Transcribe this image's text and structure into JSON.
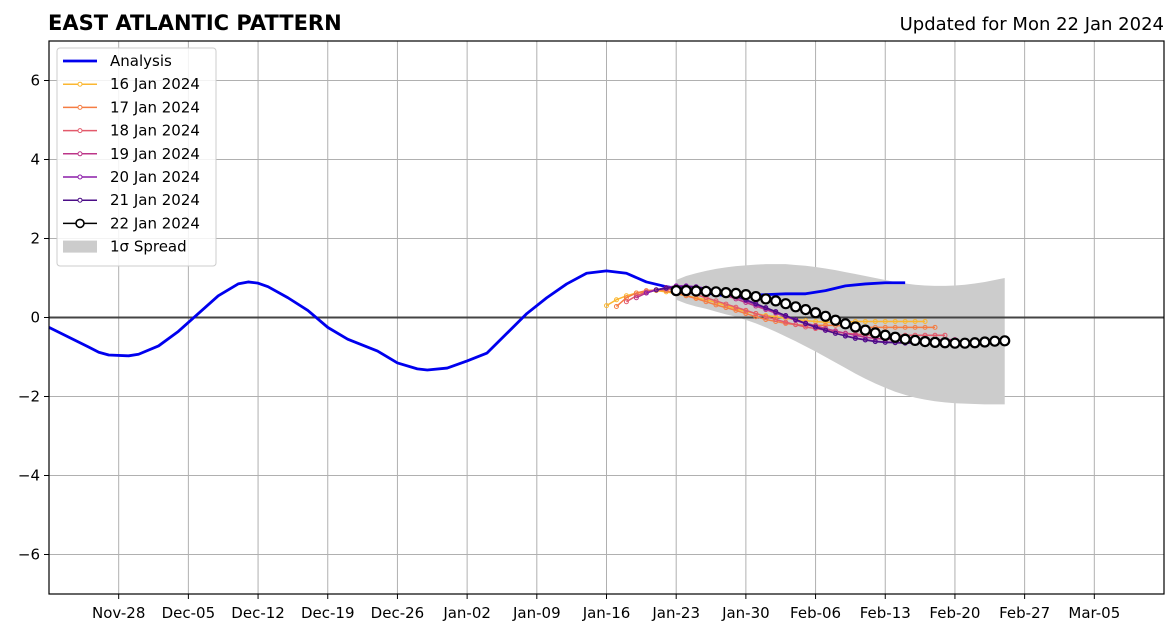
{
  "chart_data": {
    "type": "line",
    "title": "EAST ATLANTIC PATTERN",
    "subtitle": "Updated for Mon 22 Jan 2024",
    "xlabel": "",
    "ylabel": "",
    "xlim": [
      "2023-11-21",
      "2024-03-12"
    ],
    "ylim": [
      -7,
      7
    ],
    "grid": true,
    "legend_position": "top-left",
    "x_tick_labels": [
      "Nov-28",
      "Dec-05",
      "Dec-12",
      "Dec-19",
      "Dec-26",
      "Jan-02",
      "Jan-09",
      "Jan-16",
      "Jan-23",
      "Jan-30",
      "Feb-06",
      "Feb-13",
      "Feb-20",
      "Feb-27",
      "Mar-05"
    ],
    "x_tick_dates": [
      "2023-11-28",
      "2023-12-05",
      "2023-12-12",
      "2023-12-19",
      "2023-12-26",
      "2024-01-02",
      "2024-01-09",
      "2024-01-16",
      "2024-01-23",
      "2024-01-30",
      "2024-02-06",
      "2024-02-13",
      "2024-02-20",
      "2024-02-27",
      "2024-03-05"
    ],
    "y_ticks": [
      -6,
      -4,
      -2,
      0,
      2,
      4,
      6
    ],
    "y_tick_labels": [
      "−6",
      "−4",
      "−2",
      "0",
      "2",
      "4",
      "6"
    ],
    "analysis": {
      "name": "Analysis",
      "color": "#0000ee",
      "points": [
        [
          "2023-11-21",
          -0.25
        ],
        [
          "2023-11-23",
          -0.5
        ],
        [
          "2023-11-25",
          -0.75
        ],
        [
          "2023-11-26",
          -0.88
        ],
        [
          "2023-11-27",
          -0.95
        ],
        [
          "2023-11-29",
          -0.97
        ],
        [
          "2023-11-30",
          -0.93
        ],
        [
          "2023-12-02",
          -0.72
        ],
        [
          "2023-12-04",
          -0.35
        ],
        [
          "2023-12-06",
          0.1
        ],
        [
          "2023-12-08",
          0.55
        ],
        [
          "2023-12-10",
          0.85
        ],
        [
          "2023-12-11",
          0.9
        ],
        [
          "2023-12-12",
          0.87
        ],
        [
          "2023-12-13",
          0.78
        ],
        [
          "2023-12-15",
          0.5
        ],
        [
          "2023-12-17",
          0.18
        ],
        [
          "2023-12-19",
          -0.25
        ],
        [
          "2023-12-21",
          -0.55
        ],
        [
          "2023-12-24",
          -0.85
        ],
        [
          "2023-12-26",
          -1.15
        ],
        [
          "2023-12-28",
          -1.3
        ],
        [
          "2023-12-29",
          -1.33
        ],
        [
          "2023-12-31",
          -1.28
        ],
        [
          "2024-01-02",
          -1.1
        ],
        [
          "2024-01-04",
          -0.9
        ],
        [
          "2024-01-06",
          -0.4
        ],
        [
          "2024-01-08",
          0.1
        ],
        [
          "2024-01-10",
          0.5
        ],
        [
          "2024-01-12",
          0.85
        ],
        [
          "2024-01-14",
          1.12
        ],
        [
          "2024-01-16",
          1.18
        ],
        [
          "2024-01-18",
          1.12
        ],
        [
          "2024-01-20",
          0.9
        ],
        [
          "2024-01-22",
          0.78
        ],
        [
          "2024-01-24",
          0.7
        ],
        [
          "2024-01-26",
          0.62
        ],
        [
          "2024-01-28",
          0.55
        ],
        [
          "2024-01-30",
          0.55
        ],
        [
          "2024-02-01",
          0.58
        ],
        [
          "2024-02-03",
          0.6
        ],
        [
          "2024-02-05",
          0.6
        ],
        [
          "2024-02-07",
          0.68
        ],
        [
          "2024-02-09",
          0.8
        ],
        [
          "2024-02-11",
          0.85
        ],
        [
          "2024-02-13",
          0.88
        ],
        [
          "2024-02-15",
          0.88
        ]
      ]
    },
    "forecasts": [
      {
        "name": "16 Jan 2024",
        "color": "#fbb731",
        "start": "2024-01-16",
        "values": [
          0.3,
          0.45,
          0.55,
          0.62,
          0.65,
          0.68,
          0.65,
          0.6,
          0.55,
          0.5,
          0.45,
          0.38,
          0.3,
          0.22,
          0.15,
          0.1,
          0.05,
          0.02,
          -0.02,
          -0.05,
          -0.08,
          -0.1,
          -0.12,
          -0.12,
          -0.12,
          -0.1,
          -0.1,
          -0.1,
          -0.1,
          -0.1,
          -0.1,
          -0.1,
          -0.1
        ]
      },
      {
        "name": "17 Jan 2024",
        "color": "#f57d43",
        "start": "2024-01-17",
        "values": [
          0.28,
          0.5,
          0.62,
          0.68,
          0.7,
          0.68,
          0.62,
          0.55,
          0.48,
          0.4,
          0.32,
          0.25,
          0.18,
          0.1,
          0.02,
          -0.05,
          -0.1,
          -0.15,
          -0.18,
          -0.2,
          -0.2,
          -0.2,
          -0.2,
          -0.22,
          -0.25,
          -0.25,
          -0.25,
          -0.25,
          -0.25,
          -0.25,
          -0.25,
          -0.25,
          -0.25
        ]
      },
      {
        "name": "18 Jan 2024",
        "color": "#e35a6b",
        "start": "2024-01-18",
        "values": [
          0.4,
          0.55,
          0.65,
          0.7,
          0.72,
          0.7,
          0.65,
          0.58,
          0.5,
          0.42,
          0.34,
          0.26,
          0.18,
          0.1,
          0.02,
          -0.05,
          -0.12,
          -0.18,
          -0.24,
          -0.28,
          -0.32,
          -0.36,
          -0.4,
          -0.42,
          -0.44,
          -0.45,
          -0.45,
          -0.45,
          -0.45,
          -0.45,
          -0.45,
          -0.45,
          -0.45
        ]
      },
      {
        "name": "19 Jan 2024",
        "color": "#bc3688",
        "start": "2024-01-19",
        "values": [
          0.5,
          0.62,
          0.7,
          0.75,
          0.78,
          0.78,
          0.75,
          0.7,
          0.64,
          0.56,
          0.47,
          0.38,
          0.29,
          0.2,
          0.11,
          0.02,
          -0.06,
          -0.14,
          -0.21,
          -0.28,
          -0.34,
          -0.4,
          -0.45,
          -0.5,
          -0.53,
          -0.55,
          -0.56,
          -0.56,
          -0.56,
          -0.56,
          -0.56,
          -0.56,
          -0.56
        ]
      },
      {
        "name": "20 Jan 2024",
        "color": "#8b1da9",
        "start": "2024-01-20",
        "values": [
          0.62,
          0.7,
          0.76,
          0.8,
          0.8,
          0.78,
          0.74,
          0.68,
          0.6,
          0.52,
          0.43,
          0.33,
          0.23,
          0.13,
          0.03,
          -0.07,
          -0.16,
          -0.25,
          -0.33,
          -0.4,
          -0.46,
          -0.52,
          -0.56,
          -0.6,
          -0.62,
          -0.63,
          -0.64,
          -0.64,
          -0.64,
          -0.64,
          -0.64,
          -0.64,
          -0.64
        ]
      },
      {
        "name": "21 Jan 2024",
        "color": "#4b0d87",
        "start": "2024-01-21",
        "values": [
          0.7,
          0.74,
          0.77,
          0.78,
          0.77,
          0.74,
          0.69,
          0.62,
          0.54,
          0.45,
          0.35,
          0.25,
          0.15,
          0.05,
          -0.05,
          -0.15,
          -0.24,
          -0.32,
          -0.4,
          -0.47,
          -0.53,
          -0.57,
          -0.61,
          -0.63,
          -0.64,
          -0.65,
          -0.65,
          -0.65,
          -0.65,
          -0.65,
          -0.65,
          -0.65,
          -0.65
        ]
      }
    ],
    "current_forecast": {
      "name": "22 Jan 2024",
      "color": "#000000",
      "start": "2024-01-23",
      "values": [
        0.68,
        0.68,
        0.67,
        0.66,
        0.65,
        0.63,
        0.61,
        0.58,
        0.53,
        0.47,
        0.42,
        0.35,
        0.27,
        0.2,
        0.12,
        0.03,
        -0.07,
        -0.16,
        -0.24,
        -0.32,
        -0.39,
        -0.45,
        -0.5,
        -0.55,
        -0.58,
        -0.61,
        -0.63,
        -0.64,
        -0.65,
        -0.65,
        -0.64,
        -0.62,
        -0.6,
        -0.59
      ]
    },
    "spread": {
      "name": "1σ Spread",
      "color": "#cccccc",
      "start": "2024-01-23",
      "upper": [
        0.95,
        1.05,
        1.12,
        1.18,
        1.23,
        1.27,
        1.3,
        1.32,
        1.34,
        1.35,
        1.35,
        1.35,
        1.33,
        1.31,
        1.28,
        1.24,
        1.2,
        1.15,
        1.1,
        1.05,
        1.0,
        0.95,
        0.9,
        0.86,
        0.83,
        0.81,
        0.8,
        0.8,
        0.81,
        0.83,
        0.86,
        0.9,
        0.95,
        1.0
      ],
      "lower": [
        0.45,
        0.35,
        0.28,
        0.22,
        0.15,
        0.08,
        0.02,
        -0.06,
        -0.15,
        -0.25,
        -0.36,
        -0.48,
        -0.6,
        -0.73,
        -0.86,
        -1.0,
        -1.14,
        -1.28,
        -1.42,
        -1.55,
        -1.67,
        -1.78,
        -1.88,
        -1.96,
        -2.03,
        -2.08,
        -2.12,
        -2.15,
        -2.17,
        -2.18,
        -2.19,
        -2.2,
        -2.2,
        -2.2
      ]
    }
  }
}
